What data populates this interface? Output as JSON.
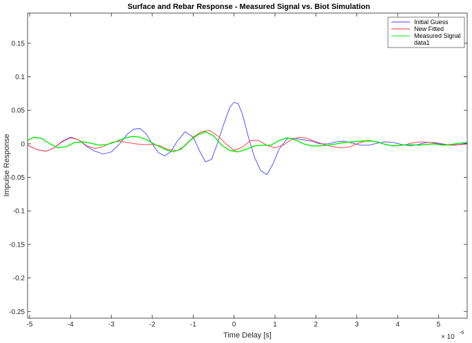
{
  "chart_data": {
    "type": "line",
    "title": "Surface and Rebar Response - Measured Signal vs. Biot Simulation",
    "xlabel": "Time Delay [s]",
    "ylabel": "Impulse Response",
    "x_multiplier": "× 10",
    "x_exponent": "-6",
    "xlim": [
      -5.05,
      5.7
    ],
    "ylim": [
      -0.26,
      0.195
    ],
    "xticks": [
      -5,
      -4,
      -3,
      -2,
      -1,
      0,
      1,
      2,
      3,
      4,
      5
    ],
    "xtick_labels": [
      "-5",
      "-4",
      "-3",
      "-2",
      "-1",
      "0",
      "1",
      "2",
      "3",
      "4",
      "5"
    ],
    "yticks": [
      -0.25,
      -0.2,
      -0.15,
      -0.1,
      -0.05,
      0,
      0.05,
      0.1,
      0.15
    ],
    "ytick_labels": [
      "-0.25",
      "-0.2",
      "-0.15",
      "-0.1",
      "-0.05",
      "0",
      "0.05",
      "0.1",
      "0.15"
    ],
    "grid": false,
    "legend_position": "top-right",
    "series": [
      {
        "name": "Initial Guess",
        "color": "#4040ff",
        "x": [
          -5.05,
          -4.8,
          -4.6,
          -4.4,
          -4.2,
          -4.0,
          -3.8,
          -3.6,
          -3.4,
          -3.2,
          -3.0,
          -2.8,
          -2.6,
          -2.45,
          -2.3,
          -2.15,
          -2.0,
          -1.85,
          -1.7,
          -1.55,
          -1.4,
          -1.2,
          -1.0,
          -0.85,
          -0.7,
          -0.55,
          -0.4,
          -0.25,
          -0.1,
          0.0,
          0.1,
          0.2,
          0.35,
          0.5,
          0.65,
          0.8,
          0.95,
          1.1,
          1.3,
          1.5,
          1.7,
          1.9,
          2.1,
          2.3,
          2.5,
          2.7,
          2.9,
          3.1,
          3.3,
          3.5,
          3.7,
          3.9,
          4.1,
          4.3,
          4.5,
          4.7,
          4.9,
          5.1,
          5.3,
          5.5,
          5.7
        ],
        "y": [
          -0.002,
          -0.009,
          -0.011,
          -0.006,
          0.004,
          0.01,
          0.006,
          -0.004,
          -0.011,
          -0.015,
          -0.012,
          0.0,
          0.015,
          0.022,
          0.023,
          0.015,
          0.0,
          -0.013,
          -0.018,
          -0.012,
          0.003,
          0.018,
          0.01,
          -0.01,
          -0.027,
          -0.023,
          0.002,
          0.03,
          0.055,
          0.062,
          0.06,
          0.045,
          0.01,
          -0.02,
          -0.04,
          -0.046,
          -0.03,
          -0.008,
          0.008,
          0.008,
          0.006,
          0.004,
          0.0,
          0.0,
          0.003,
          0.004,
          0.001,
          -0.002,
          -0.002,
          0.001,
          0.003,
          0.002,
          -0.001,
          -0.003,
          -0.001,
          0.002,
          0.002,
          0.0,
          -0.002,
          -0.001,
          0.001
        ]
      },
      {
        "name": "New Fitted",
        "color": "#ff3030",
        "x": [
          -5.05,
          -4.8,
          -4.6,
          -4.4,
          -4.2,
          -4.0,
          -3.8,
          -3.6,
          -3.4,
          -3.2,
          -3.0,
          -2.8,
          -2.6,
          -2.4,
          -2.2,
          -2.0,
          -1.8,
          -1.6,
          -1.4,
          -1.2,
          -1.0,
          -0.8,
          -0.6,
          -0.4,
          -0.2,
          0.0,
          0.2,
          0.4,
          0.6,
          0.8,
          1.0,
          1.2,
          1.4,
          1.6,
          1.8,
          2.0,
          2.2,
          2.4,
          2.6,
          2.8,
          3.0,
          3.2,
          3.4,
          3.6,
          3.8,
          4.0,
          4.2,
          4.4,
          4.6,
          4.8,
          5.0,
          5.2,
          5.4,
          5.7
        ],
        "y": [
          -0.002,
          -0.009,
          -0.011,
          -0.006,
          0.003,
          0.009,
          0.006,
          -0.003,
          -0.007,
          -0.004,
          0.002,
          0.004,
          0.002,
          0.0,
          -0.001,
          -0.001,
          -0.003,
          -0.009,
          -0.01,
          -0.003,
          0.01,
          0.018,
          0.02,
          0.012,
          0.0,
          -0.01,
          -0.005,
          0.005,
          0.005,
          -0.002,
          -0.006,
          -0.002,
          0.006,
          0.01,
          0.008,
          0.003,
          -0.001,
          -0.004,
          -0.006,
          -0.005,
          0.0,
          0.004,
          0.004,
          0.001,
          -0.002,
          -0.003,
          -0.001,
          0.002,
          0.003,
          0.002,
          0.0,
          -0.002,
          -0.002,
          0.0
        ]
      },
      {
        "name": "Measured Signal",
        "color": "#00ee00",
        "x": [
          -5.05,
          -4.9,
          -4.7,
          -4.5,
          -4.3,
          -4.1,
          -3.9,
          -3.7,
          -3.5,
          -3.3,
          -3.1,
          -2.9,
          -2.7,
          -2.5,
          -2.3,
          -2.1,
          -1.9,
          -1.7,
          -1.5,
          -1.3,
          -1.1,
          -0.9,
          -0.7,
          -0.5,
          -0.3,
          -0.1,
          0.1,
          0.3,
          0.5,
          0.7,
          0.9,
          1.1,
          1.3,
          1.5,
          1.7,
          1.9,
          2.1,
          2.3,
          2.5,
          2.7,
          2.9,
          3.1,
          3.3,
          3.5,
          3.7,
          3.9,
          4.1,
          4.3,
          4.5,
          4.7,
          4.9,
          5.1,
          5.3,
          5.5,
          5.7
        ],
        "y": [
          0.005,
          0.01,
          0.008,
          0.0,
          -0.006,
          -0.004,
          0.002,
          0.003,
          0.001,
          -0.002,
          -0.001,
          0.003,
          0.008,
          0.011,
          0.01,
          0.005,
          -0.002,
          -0.008,
          -0.012,
          -0.008,
          0.004,
          0.013,
          0.018,
          0.012,
          -0.002,
          -0.01,
          -0.012,
          -0.008,
          -0.003,
          -0.002,
          -0.002,
          0.005,
          0.009,
          0.006,
          0.0,
          -0.003,
          -0.003,
          -0.002,
          0.0,
          0.002,
          0.003,
          0.004,
          0.005,
          0.003,
          -0.001,
          -0.003,
          -0.002,
          -0.001,
          -0.002,
          -0.001,
          0.0,
          -0.002,
          -0.001,
          0.001,
          0.002
        ]
      },
      {
        "name": "data1",
        "color": "#000000",
        "x": [],
        "y": []
      }
    ]
  }
}
